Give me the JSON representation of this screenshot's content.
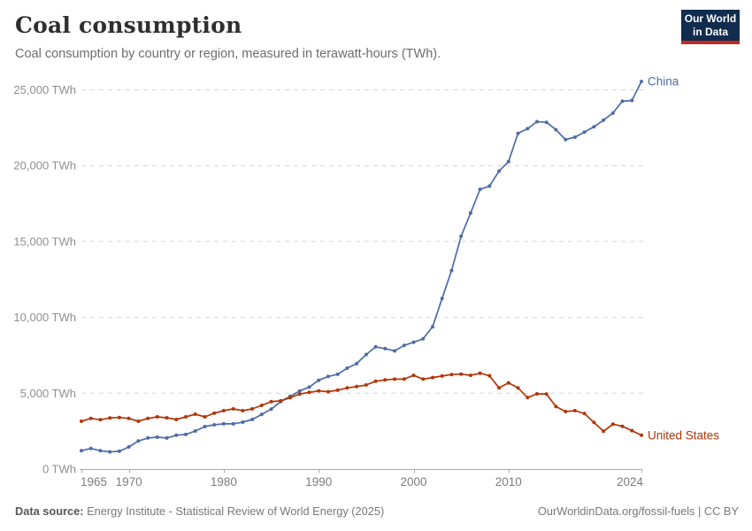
{
  "header": {
    "title": "Coal consumption",
    "subtitle": "Coal consumption by country or region, measured in terawatt-hours (TWh).",
    "logo_line1": "Our World",
    "logo_line2": "in Data"
  },
  "chart_data": {
    "type": "line",
    "title": "Coal consumption",
    "unit": "TWh",
    "grid": "horizontal-dashed",
    "legend_position": "end-of-line-labels",
    "ylim": [
      0,
      25000
    ],
    "yticks": [
      0,
      5000,
      10000,
      15000,
      20000,
      25000
    ],
    "xticks": [
      1965,
      1970,
      1980,
      1990,
      2000,
      2010,
      2024
    ],
    "years": [
      1965,
      1966,
      1967,
      1968,
      1969,
      1970,
      1971,
      1972,
      1973,
      1974,
      1975,
      1976,
      1977,
      1978,
      1979,
      1980,
      1981,
      1982,
      1983,
      1984,
      1985,
      1986,
      1987,
      1988,
      1989,
      1990,
      1991,
      1992,
      1993,
      1994,
      1995,
      1996,
      1997,
      1998,
      1999,
      2000,
      2001,
      2002,
      2003,
      2004,
      2005,
      2006,
      2007,
      2008,
      2009,
      2010,
      2011,
      2012,
      2013,
      2014,
      2015,
      2016,
      2017,
      2018,
      2019,
      2020,
      2021,
      2022,
      2023,
      2024
    ],
    "series": [
      {
        "name": "China",
        "color": "#4c6ca8",
        "values": [
          1210,
          1360,
          1210,
          1130,
          1170,
          1460,
          1850,
          2050,
          2100,
          2050,
          2230,
          2280,
          2510,
          2800,
          2920,
          2980,
          2980,
          3090,
          3270,
          3600,
          3950,
          4450,
          4800,
          5150,
          5400,
          5850,
          6100,
          6250,
          6650,
          6950,
          7550,
          8060,
          7940,
          7790,
          8150,
          8360,
          8590,
          9380,
          11250,
          13080,
          15350,
          16880,
          18440,
          18650,
          19650,
          20270,
          22130,
          22440,
          22900,
          22860,
          22370,
          21720,
          21880,
          22210,
          22560,
          23000,
          23470,
          24250,
          24300,
          25550
        ]
      },
      {
        "name": "United States",
        "color": "#b13507",
        "values": [
          3150,
          3340,
          3250,
          3370,
          3400,
          3340,
          3150,
          3340,
          3440,
          3380,
          3270,
          3440,
          3620,
          3440,
          3680,
          3850,
          3970,
          3850,
          3970,
          4200,
          4440,
          4500,
          4700,
          4950,
          5050,
          5150,
          5100,
          5200,
          5350,
          5440,
          5540,
          5790,
          5880,
          5930,
          5930,
          6180,
          5930,
          6030,
          6130,
          6230,
          6260,
          6180,
          6320,
          6150,
          5350,
          5680,
          5350,
          4710,
          4960,
          4940,
          4120,
          3790,
          3850,
          3660,
          3070,
          2490,
          2960,
          2820,
          2530,
          2230
        ]
      }
    ]
  },
  "footer": {
    "source_label": "Data source:",
    "source_text": " Energy Institute - Statistical Review of World Energy (2025)",
    "attribution": "OurWorldinData.org/fossil-fuels | CC BY"
  }
}
